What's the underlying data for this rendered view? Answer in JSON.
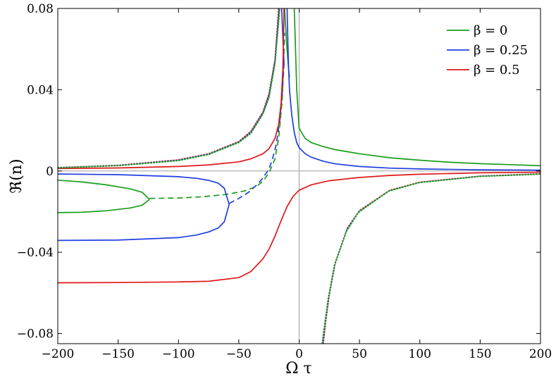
{
  "chart_data": {
    "type": "line",
    "xlabel": "Ω τ",
    "ylabel": "ℜ(n)",
    "xlim": [
      -200,
      200
    ],
    "ylim": [
      -0.085,
      0.08
    ],
    "x_ticks": [
      -200,
      -150,
      -100,
      -50,
      0,
      50,
      100,
      150,
      200
    ],
    "x_tick_labels": [
      "−200",
      "−150",
      "−100",
      "−50",
      "0",
      "50",
      "100",
      "150",
      "200"
    ],
    "y_ticks": [
      -0.08,
      -0.04,
      0,
      0.04,
      0.08
    ],
    "y_tick_labels": [
      "−0.08",
      "−0.04",
      "0",
      "0.04",
      "0.08"
    ],
    "grid": false,
    "reference_lines": {
      "horizontal_y": 0,
      "vertical_x": 0,
      "color": "#a0a0a0"
    },
    "legend": {
      "placement": "top-right",
      "entries": [
        {
          "label": "β = 0",
          "color": "#1a9e1a"
        },
        {
          "label": "β = 0.25",
          "color": "#1f3fe0"
        },
        {
          "label": "β = 0.5",
          "color": "#e01818"
        }
      ]
    },
    "series": [
      {
        "color": "#1a9e1a",
        "style": "solid",
        "x": [
          -12,
          -11.5,
          -11,
          -10.5,
          -10,
          -9.5,
          -9,
          -8.5,
          -8
        ],
        "y": [
          0.08,
          0.074,
          0.069,
          0.064,
          0.06,
          0.056,
          0.052,
          0.049,
          0.046
        ]
      },
      {
        "color": "#1a9e1a",
        "style": "solid",
        "x": [
          -4,
          -2,
          0,
          5,
          10,
          20,
          30,
          50,
          75,
          100,
          125,
          150,
          175,
          200
        ],
        "y": [
          0.08,
          0.04,
          0.021,
          0.016,
          0.014,
          0.012,
          0.0105,
          0.0085,
          0.0065,
          0.0053,
          0.0043,
          0.0036,
          0.0031,
          0.0026
        ]
      },
      {
        "color": "#1a9e1a",
        "style": "solid",
        "x": [
          -200,
          -180,
          -160,
          -140,
          -130,
          -124
        ],
        "y": [
          -0.0045,
          -0.0054,
          -0.0068,
          -0.0088,
          -0.0105,
          -0.014
        ]
      },
      {
        "color": "#1a9e1a",
        "style": "solid",
        "x": [
          -200,
          -180,
          -160,
          -140,
          -130,
          -124
        ],
        "y": [
          -0.0205,
          -0.0203,
          -0.0196,
          -0.0182,
          -0.0168,
          -0.014
        ]
      },
      {
        "color": "#1a9e1a",
        "style": "dashed",
        "x": [
          -124,
          -100,
          -80,
          -60,
          -45,
          -35,
          -30,
          -25,
          -20,
          -17,
          -14,
          -12
        ],
        "y": [
          -0.0135,
          -0.0133,
          -0.0127,
          -0.0115,
          -0.0098,
          -0.0075,
          -0.005,
          -0.001,
          0.006,
          0.016,
          0.035,
          0.068
        ]
      },
      {
        "color": "#1f3fe0",
        "style": "solid",
        "x": [
          -14.5,
          -14,
          -13.5,
          -13,
          -12.5
        ],
        "y": [
          0.08,
          0.073,
          0.066,
          0.059,
          0.053
        ]
      },
      {
        "color": "#1f3fe0",
        "style": "solid",
        "x": [
          -10,
          -9,
          -8,
          -6,
          -4,
          -2,
          0,
          5,
          10,
          20,
          30,
          50,
          75,
          100,
          150,
          200
        ],
        "y": [
          0.08,
          0.055,
          0.04,
          0.027,
          0.019,
          0.014,
          0.0115,
          0.0085,
          0.0068,
          0.0048,
          0.0035,
          0.0022,
          0.0014,
          0.001,
          0.0006,
          0.0004
        ]
      },
      {
        "color": "#1f3fe0",
        "style": "solid",
        "x": [
          -200,
          -150,
          -100,
          -85,
          -75,
          -67,
          -62,
          -58
        ],
        "y": [
          -0.0015,
          -0.0018,
          -0.0028,
          -0.0036,
          -0.0046,
          -0.006,
          -0.0085,
          -0.0165
        ]
      },
      {
        "color": "#1f3fe0",
        "style": "solid",
        "x": [
          -200,
          -150,
          -100,
          -85,
          -75,
          -67,
          -62,
          -58
        ],
        "y": [
          -0.0342,
          -0.034,
          -0.0328,
          -0.0315,
          -0.03,
          -0.028,
          -0.025,
          -0.0165
        ]
      },
      {
        "color": "#1f3fe0",
        "style": "dashed",
        "x": [
          -58,
          -50,
          -42,
          -35,
          -30,
          -25,
          -22,
          -19,
          -16,
          -14,
          -12.5
        ],
        "y": [
          -0.016,
          -0.0135,
          -0.0105,
          -0.0068,
          -0.0035,
          0.001,
          0.006,
          0.013,
          0.025,
          0.038,
          0.053
        ]
      },
      {
        "color": "#e01818",
        "style": "solid",
        "x": [
          -200,
          -150,
          -100,
          -75,
          -50,
          -40,
          -30,
          -25,
          -20,
          -17,
          -15,
          -13.5,
          -12.5
        ],
        "y": [
          0.0012,
          0.0015,
          0.0022,
          0.003,
          0.0045,
          0.006,
          0.0085,
          0.011,
          0.016,
          0.023,
          0.033,
          0.05,
          0.08
        ]
      },
      {
        "color": "#e01818",
        "style": "solid",
        "x": [
          -200,
          -150,
          -100,
          -75,
          -50,
          -40,
          -30,
          -25,
          -20,
          -15,
          -10,
          -5,
          0,
          10,
          25,
          50,
          75,
          100,
          150,
          200
        ],
        "y": [
          -0.055,
          -0.0549,
          -0.0546,
          -0.0543,
          -0.0525,
          -0.0495,
          -0.0432,
          -0.0385,
          -0.032,
          -0.0245,
          -0.0175,
          -0.0125,
          -0.0095,
          -0.0068,
          -0.0048,
          -0.0032,
          -0.0022,
          -0.0016,
          -0.0009,
          -0.0006
        ]
      },
      {
        "color": "#e01818",
        "style": "dotted",
        "x": [
          -200,
          -150,
          -100,
          -75,
          -50,
          -40,
          -30,
          -25,
          -20,
          -17
        ],
        "y": [
          0.0017,
          0.0028,
          0.0055,
          0.0085,
          0.0145,
          0.0195,
          0.029,
          0.038,
          0.055,
          0.08
        ]
      },
      {
        "color": "#1f3fe0",
        "style": "dotted",
        "x": [
          -200,
          -150,
          -100,
          -75,
          -50,
          -40,
          -30,
          -25,
          -20,
          -16.5
        ],
        "y": [
          0.0016,
          0.0027,
          0.0053,
          0.0083,
          0.0142,
          0.019,
          0.0285,
          0.037,
          0.054,
          0.08
        ]
      },
      {
        "color": "#1a9e1a",
        "style": "dotted",
        "x": [
          -200,
          -150,
          -100,
          -75,
          -50,
          -40,
          -30,
          -25,
          -20,
          -16
        ],
        "y": [
          0.0015,
          0.0026,
          0.0051,
          0.0081,
          0.014,
          0.0185,
          0.028,
          0.036,
          0.053,
          0.08
        ]
      },
      {
        "color": "#e01818",
        "style": "dotted",
        "x": [
          20,
          22,
          25,
          30,
          40,
          50,
          75,
          100,
          150,
          200
        ],
        "y": [
          -0.085,
          -0.074,
          -0.061,
          -0.045,
          -0.028,
          -0.0195,
          -0.0095,
          -0.0055,
          -0.0025,
          -0.0014
        ]
      },
      {
        "color": "#1f3fe0",
        "style": "dotted",
        "x": [
          19.5,
          21.5,
          24.5,
          29.5,
          39.5,
          49.5,
          74.5,
          99.5,
          149.5,
          199.5
        ],
        "y": [
          -0.085,
          -0.075,
          -0.062,
          -0.046,
          -0.029,
          -0.02,
          -0.0098,
          -0.0057,
          -0.0026,
          -0.0015
        ]
      },
      {
        "color": "#1a9e1a",
        "style": "dotted",
        "x": [
          19,
          21,
          24,
          29,
          39,
          49,
          74,
          99,
          149,
          199
        ],
        "y": [
          -0.085,
          -0.076,
          -0.063,
          -0.047,
          -0.03,
          -0.0205,
          -0.01,
          -0.0058,
          -0.0027,
          -0.0016
        ]
      }
    ]
  }
}
